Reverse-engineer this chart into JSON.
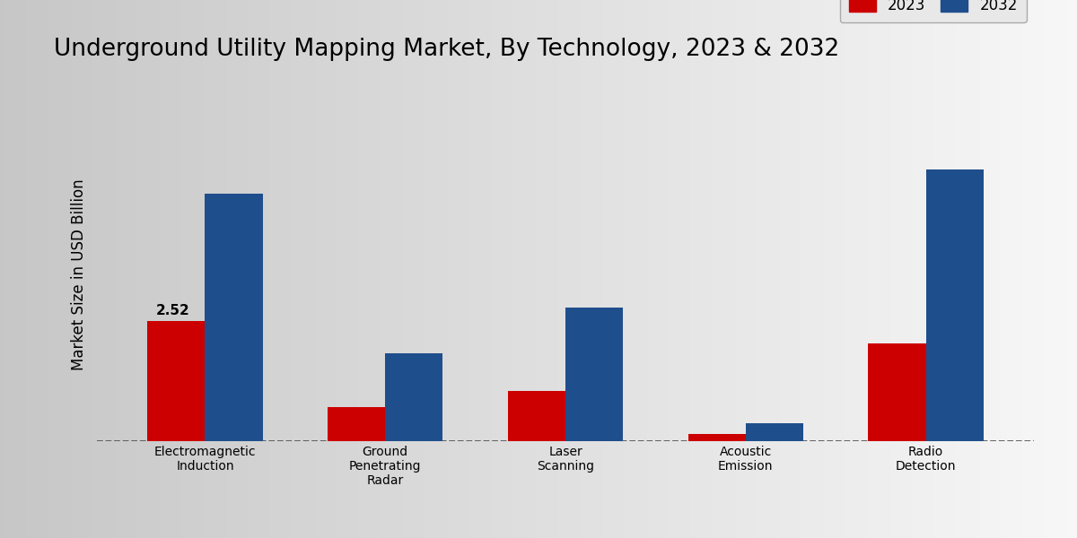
{
  "title": "Underground Utility Mapping Market, By Technology, 2023 & 2032",
  "ylabel": "Market Size in USD Billion",
  "categories": [
    "Electromagnetic\nInduction",
    "Ground\nPenetrating\nRadar",
    "Laser\nScanning",
    "Acoustic\nEmission",
    "Radio\nDetection"
  ],
  "values_2023": [
    2.52,
    0.72,
    1.05,
    0.15,
    2.05
  ],
  "values_2032": [
    5.2,
    1.85,
    2.8,
    0.38,
    5.7
  ],
  "color_2023": "#cc0000",
  "color_2032": "#1f4e8c",
  "bar_annotation": "2.52",
  "annotation_index": 0,
  "background_color_top": "#d0d0d0",
  "background_color_bottom": "#f5f5f5",
  "legend_labels": [
    "2023",
    "2032"
  ],
  "bar_width": 0.32,
  "title_fontsize": 19,
  "axis_label_fontsize": 12,
  "tick_fontsize": 10,
  "legend_fontsize": 12,
  "ylim": [
    0,
    7.0
  ],
  "red_strip_color": "#cc0000",
  "dashed_line_color": "#555555"
}
